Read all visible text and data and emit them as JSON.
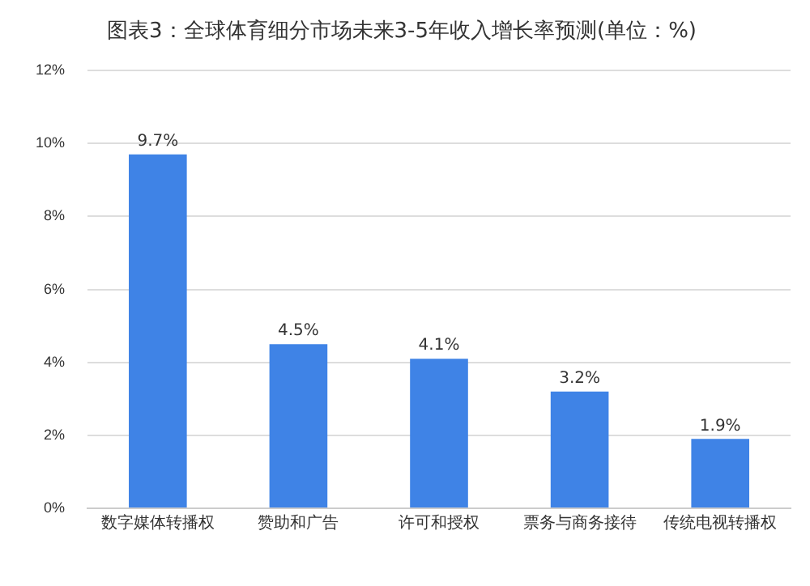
{
  "chart_data": {
    "type": "bar",
    "title": "图表3：全球体育细分市场未来3-5年收入增长率预测(单位：%)",
    "categories": [
      "数字媒体转播权",
      "赞助和广告",
      "许可和授权",
      "票务与商务接待",
      "传统电视转播权"
    ],
    "values": [
      9.7,
      4.5,
      4.1,
      3.2,
      1.9
    ],
    "color": "#3f83e6",
    "value_labels": [
      "9.7%",
      "4.5%",
      "4.1%",
      "3.2%",
      "1.9%"
    ],
    "ylim": [
      0,
      12
    ],
    "yticks": [
      {
        "value": 0,
        "label": "0%"
      },
      {
        "value": 2,
        "label": "2%"
      },
      {
        "value": 4,
        "label": "4%"
      },
      {
        "value": 6,
        "label": "6%"
      },
      {
        "value": 8,
        "label": "8%"
      },
      {
        "value": 10,
        "label": "10%"
      },
      {
        "value": 12,
        "label": "12%"
      }
    ],
    "grid": "y",
    "legend": false
  }
}
